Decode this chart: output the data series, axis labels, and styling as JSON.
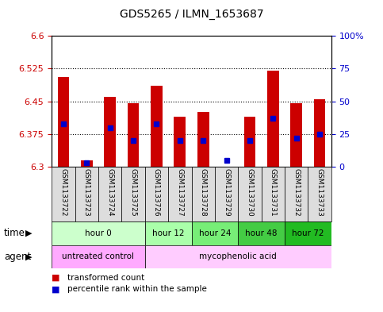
{
  "title": "GDS5265 / ILMN_1653687",
  "samples": [
    "GSM1133722",
    "GSM1133723",
    "GSM1133724",
    "GSM1133725",
    "GSM1133726",
    "GSM1133727",
    "GSM1133728",
    "GSM1133729",
    "GSM1133730",
    "GSM1133731",
    "GSM1133732",
    "GSM1133733"
  ],
  "transformed_count": [
    6.505,
    6.315,
    6.46,
    6.445,
    6.485,
    6.415,
    6.425,
    6.3,
    6.415,
    6.52,
    6.445,
    6.455
  ],
  "percentile_rank": [
    33,
    3,
    30,
    20,
    33,
    20,
    20,
    5,
    20,
    37,
    22,
    25
  ],
  "y_min": 6.3,
  "y_max": 6.6,
  "y_ticks": [
    6.3,
    6.375,
    6.45,
    6.525,
    6.6
  ],
  "y_tick_labels": [
    "6.3",
    "6.375",
    "6.45",
    "6.525",
    "6.6"
  ],
  "y2_ticks": [
    0,
    25,
    50,
    75,
    100
  ],
  "y2_tick_labels": [
    "0",
    "25",
    "50",
    "75",
    "100%"
  ],
  "bar_color": "#cc0000",
  "dot_color": "#0000cc",
  "time_groups": [
    {
      "label": "hour 0",
      "start": 0,
      "end": 4,
      "color": "#ccffcc"
    },
    {
      "label": "hour 12",
      "start": 4,
      "end": 6,
      "color": "#aaffaa"
    },
    {
      "label": "hour 24",
      "start": 6,
      "end": 8,
      "color": "#77ee77"
    },
    {
      "label": "hour 48",
      "start": 8,
      "end": 10,
      "color": "#44cc44"
    },
    {
      "label": "hour 72",
      "start": 10,
      "end": 12,
      "color": "#22bb22"
    }
  ],
  "agent_groups": [
    {
      "label": "untreated control",
      "start": 0,
      "end": 4,
      "color": "#ffaaff"
    },
    {
      "label": "mycophenolic acid",
      "start": 4,
      "end": 12,
      "color": "#ffccff"
    }
  ],
  "legend_red": "transformed count",
  "legend_blue": "percentile rank within the sample",
  "xlabel_time": "time",
  "xlabel_agent": "agent",
  "bg_color": "#ffffff",
  "plot_bg": "#ffffff",
  "bar_width": 0.5,
  "tick_label_color_left": "#cc0000",
  "tick_label_color_right": "#0000cc",
  "sample_bg": "#dddddd"
}
